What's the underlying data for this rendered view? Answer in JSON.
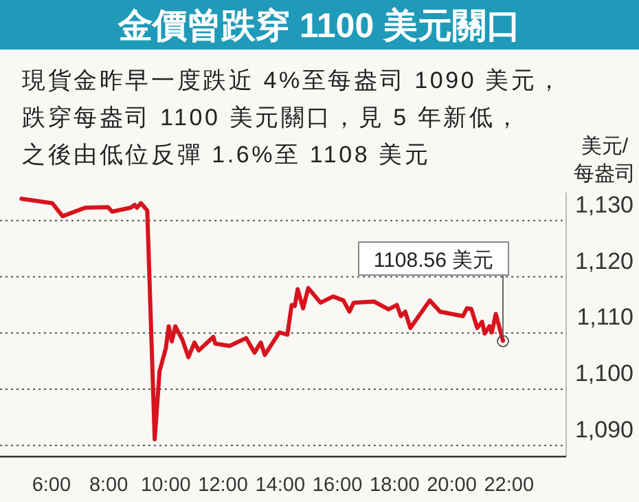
{
  "chart_data": {
    "type": "line",
    "title": "金價曾跌穿 1100 美元關口",
    "subtitle": "現貨金昨早一度跌近 4%至每盎司 1090 美元，跌穿每盎司 1100 美元關口，見 5 年新低，之後由低位反彈 1.6%至 1108 美元",
    "ylabel": "美元/每盎司",
    "x": [
      4.95,
      6.03,
      6.39,
      7.18,
      7.98,
      8.12,
      8.77,
      8.91,
      8.99,
      9.13,
      9.35,
      9.61,
      9.78,
      10.0,
      10.1,
      10.21,
      10.33,
      10.57,
      10.79,
      11.0,
      11.15,
      11.66,
      11.73,
      12.23,
      12.81,
      13.1,
      13.32,
      13.46,
      13.97,
      14.25,
      14.4,
      14.51,
      14.61,
      14.8,
      14.98,
      15.41,
      15.85,
      16.21,
      16.42,
      16.57,
      17.28,
      17.79,
      18.08,
      18.22,
      18.37,
      18.55,
      19.23,
      19.59,
      20.39,
      20.53,
      20.68,
      20.89,
      21.06,
      21.15,
      21.32,
      21.4,
      21.54,
      21.79
    ],
    "series": [
      {
        "color": "#d7141e",
        "values": [
          1133.9,
          1133.1,
          1130.8,
          1132.3,
          1132.4,
          1131.6,
          1132.3,
          1132.8,
          1132.3,
          1133.1,
          1131.8,
          1091.1,
          1103.2,
          1107.3,
          1111.2,
          1108.5,
          1111.2,
          1108.9,
          1105.7,
          1108.3,
          1106.9,
          1109.3,
          1108.1,
          1107.7,
          1109.1,
          1106.5,
          1108.3,
          1106.1,
          1110.1,
          1109.7,
          1115.0,
          1114.8,
          1117.8,
          1114.4,
          1118.0,
          1115.4,
          1116.5,
          1115.8,
          1113.8,
          1115.4,
          1115.6,
          1114.2,
          1115.0,
          1113.0,
          1113.8,
          1110.9,
          1115.8,
          1113.8,
          1113.0,
          1114.4,
          1114.3,
          1110.9,
          1112.0,
          1109.9,
          1111.2,
          1110.1,
          1113.4,
          1108.6
        ]
      }
    ],
    "annotations": [
      {
        "text": "1108.56 美元",
        "x": 21.79,
        "y": 1108.56
      }
    ],
    "xlim": [
      4.2,
      24
    ],
    "xticks": [
      {
        "value": 6,
        "label": "6:00"
      },
      {
        "value": 8,
        "label": "8:00"
      },
      {
        "value": 10,
        "label": "10:00"
      },
      {
        "value": 12,
        "label": "12:00"
      },
      {
        "value": 14,
        "label": "14:00"
      },
      {
        "value": 16,
        "label": "16:00"
      },
      {
        "value": 18,
        "label": "18:00"
      },
      {
        "value": 20,
        "label": "20:00"
      },
      {
        "value": 22,
        "label": "22:00"
      }
    ],
    "ylim": [
      1088,
      1135
    ],
    "yticks": [
      {
        "value": 1090,
        "label": "1,090"
      },
      {
        "value": 1100,
        "label": "1,100"
      },
      {
        "value": 1110,
        "label": "1,110"
      },
      {
        "value": 1120,
        "label": "1,120"
      },
      {
        "value": 1130,
        "label": "1,130"
      }
    ],
    "grid": "y",
    "marker": "none",
    "line_style": "solid"
  }
}
